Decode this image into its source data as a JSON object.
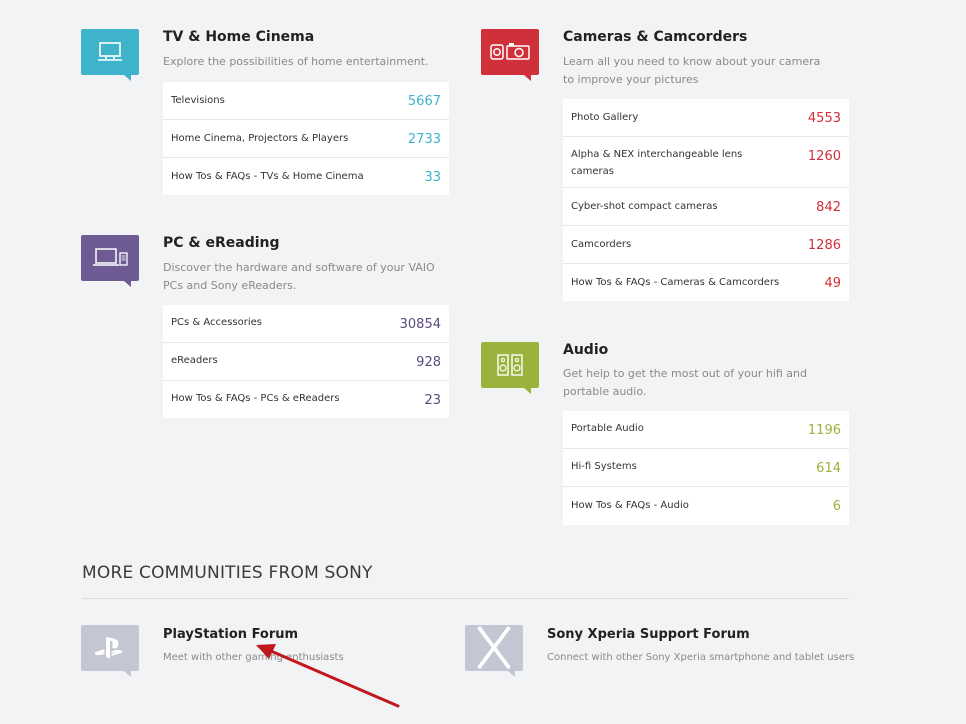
{
  "categories": [
    {
      "id": "tv",
      "icon": "tv-icon",
      "color": "#3fb3c9",
      "title": "TV & Home Cinema",
      "description": "Explore the possibilities of home entertainment.",
      "items": [
        {
          "label": "Televisions",
          "count": "5667"
        },
        {
          "label": "Home Cinema, Projectors & Players",
          "count": "2733"
        },
        {
          "label": "How Tos & FAQs - TVs & Home Cinema",
          "count": "33"
        }
      ]
    },
    {
      "id": "cameras",
      "icon": "camera-icon",
      "color": "#d0303a",
      "title": "Cameras & Camcorders",
      "description": "Learn all you need to know about your camera to improve your pictures",
      "items": [
        {
          "label": "Photo Gallery",
          "count": "4553"
        },
        {
          "label": "Alpha & NEX interchangeable lens cameras",
          "count": "1260"
        },
        {
          "label": "Cyber-shot compact cameras",
          "count": "842"
        },
        {
          "label": "Camcorders",
          "count": "1286"
        },
        {
          "label": "How Tos & FAQs - Cameras & Camcorders",
          "count": "49"
        }
      ]
    },
    {
      "id": "pc",
      "icon": "laptop-icon",
      "color": "#6e5b94",
      "title": "PC & eReading",
      "description": "Discover the hardware and software of your VAIO PCs and Sony eReaders.",
      "items": [
        {
          "label": "PCs & Accessories",
          "count": "30854"
        },
        {
          "label": "eReaders",
          "count": "928"
        },
        {
          "label": "How Tos & FAQs - PCs & eReaders",
          "count": "23"
        }
      ]
    },
    {
      "id": "audio",
      "icon": "speaker-icon",
      "color": "#9bb23c",
      "title": "Audio",
      "description": "Get help to get the most out of your hifi and portable audio.",
      "items": [
        {
          "label": "Portable Audio",
          "count": "1196"
        },
        {
          "label": "Hi-fi Systems",
          "count": "614"
        },
        {
          "label": "How Tos & FAQs - Audio",
          "count": "6"
        }
      ]
    }
  ],
  "more": {
    "heading": "MORE COMMUNITIES FROM SONY",
    "items": [
      {
        "icon": "playstation-icon",
        "title": "PlayStation Forum",
        "description": "Meet with other gaming enthusiasts"
      },
      {
        "icon": "xperia-x-icon",
        "title": "Sony Xperia Support Forum",
        "description": "Connect with other Sony Xperia smartphone and tablet users"
      }
    ]
  },
  "annotation": {
    "icon": "red-arrow-icon",
    "color": "#c0181e"
  }
}
